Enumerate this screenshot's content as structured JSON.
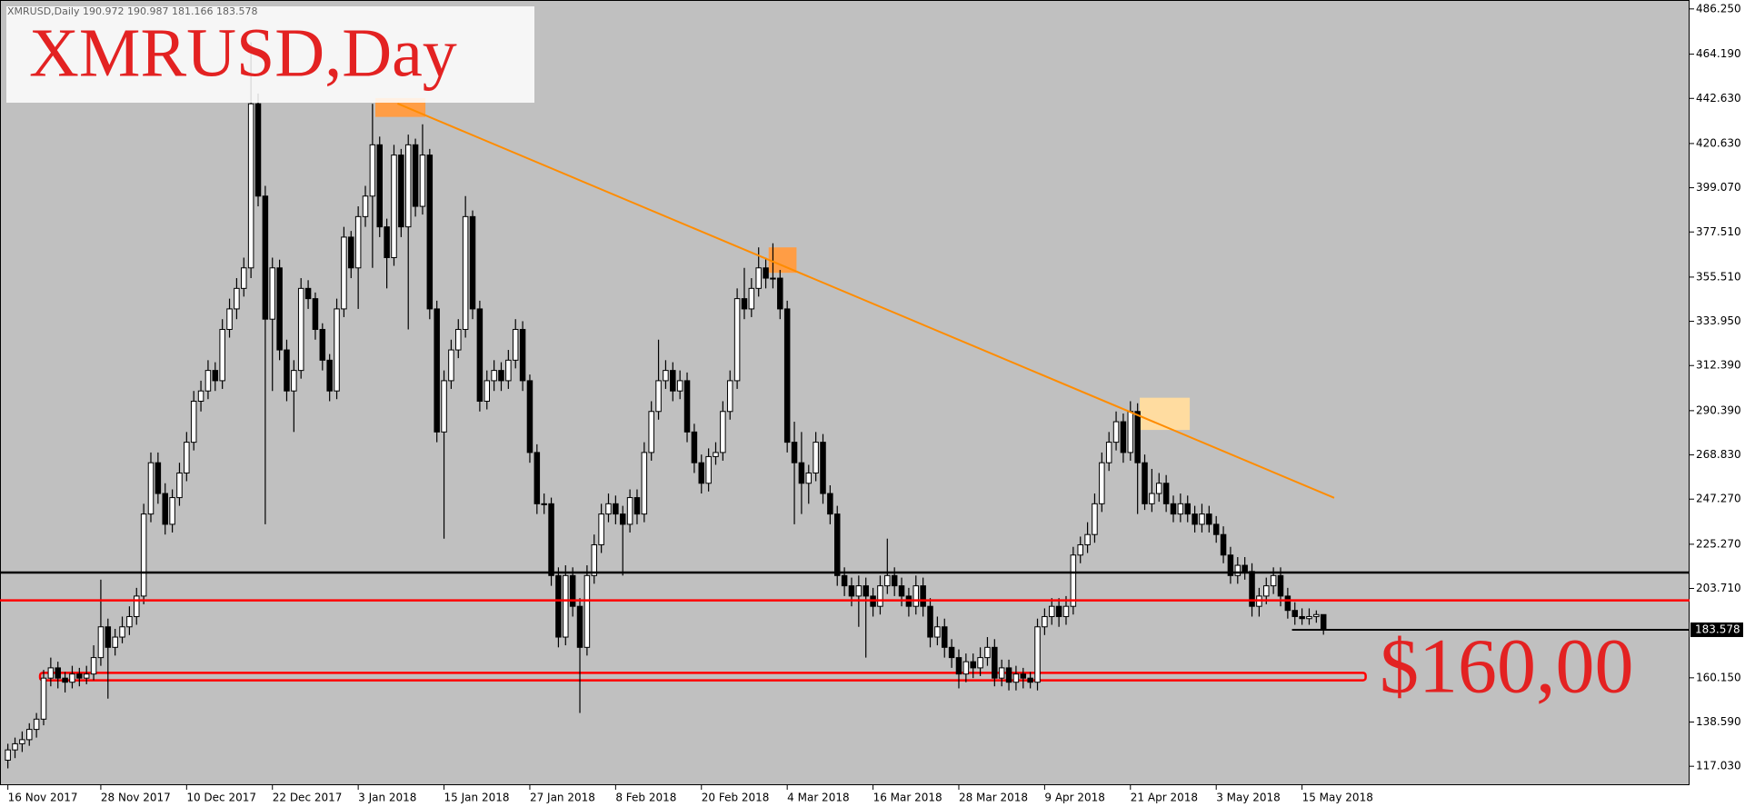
{
  "chart_data": {
    "type": "candlestick",
    "header": "XMRUSD,Daily  190.972 190.987 181.166 183.578",
    "title": "XMRUSD,Day",
    "annotation": "$160,00",
    "bull_color": "#ffffff",
    "bear_color": "#000000",
    "background": "#c0c0c0",
    "xlim": [
      -1.1,
      235.2
    ],
    "ylim": [
      107.8,
      490.6
    ],
    "yticks": [
      {
        "value": 486.25,
        "label": "486.250"
      },
      {
        "value": 464.19,
        "label": "464.190"
      },
      {
        "value": 442.63,
        "label": "442.630"
      },
      {
        "value": 420.63,
        "label": "420.630"
      },
      {
        "value": 399.07,
        "label": "399.070"
      },
      {
        "value": 377.51,
        "label": "377.510"
      },
      {
        "value": 355.51,
        "label": "355.510"
      },
      {
        "value": 333.95,
        "label": "333.950"
      },
      {
        "value": 312.39,
        "label": "312.390"
      },
      {
        "value": 290.39,
        "label": "290.390"
      },
      {
        "value": 268.83,
        "label": "268.830"
      },
      {
        "value": 247.27,
        "label": "247.270"
      },
      {
        "value": 225.27,
        "label": "225.270"
      },
      {
        "value": 203.71,
        "label": "203.710"
      },
      {
        "value": 160.15,
        "label": "160.150"
      },
      {
        "value": 138.59,
        "label": "138.590"
      },
      {
        "value": 117.03,
        "label": "117.030"
      }
    ],
    "xticks": [
      {
        "value": 0,
        "label": "16 Nov 2017"
      },
      {
        "value": 13,
        "label": "28 Nov 2017"
      },
      {
        "value": 25,
        "label": "10 Dec 2017"
      },
      {
        "value": 37,
        "label": "22 Dec 2017"
      },
      {
        "value": 49,
        "label": "3 Jan 2018"
      },
      {
        "value": 61,
        "label": "15 Jan 2018"
      },
      {
        "value": 73,
        "label": "27 Jan 2018"
      },
      {
        "value": 85,
        "label": "8 Feb 2018"
      },
      {
        "value": 97,
        "label": "20 Feb 2018"
      },
      {
        "value": 109,
        "label": "4 Mar 2018"
      },
      {
        "value": 121,
        "label": "16 Mar 2018"
      },
      {
        "value": 133,
        "label": "28 Mar 2018"
      },
      {
        "value": 145,
        "label": "9 Apr 2018"
      },
      {
        "value": 157,
        "label": "21 Apr 2018"
      },
      {
        "value": 169,
        "label": "3 May 2018"
      },
      {
        "value": 181,
        "label": "15 May 2018"
      }
    ],
    "last_price": 183.578,
    "last_price_line_x": 179.6,
    "levels": [
      {
        "value": 211.5,
        "color": "#000000"
      },
      {
        "value": 197.9,
        "color": "#ff0000"
      }
    ],
    "band": {
      "range": [
        158.9,
        162.6
      ],
      "x": [
        4.5,
        189.9
      ],
      "color": "#ff0000"
    },
    "trendline": {
      "x": [
        54.5,
        185.5
      ],
      "y": [
        440.1,
        247.9
      ],
      "color": "#ff8c00"
    },
    "highlights": [
      {
        "x": [
          51.4,
          58.4
        ],
        "y": [
          433.6,
          442.8
        ],
        "color": "#ff9d45"
      },
      {
        "x": [
          106.4,
          110.3
        ],
        "y": [
          357.6,
          370.0
        ],
        "color": "#ff9d45"
      },
      {
        "x": [
          158.3,
          165.3
        ],
        "y": [
          281.0,
          296.7
        ],
        "color": "#ffdca0"
      }
    ],
    "ohlc": [
      [
        120,
        128,
        116,
        125
      ],
      [
        125,
        131,
        121,
        128
      ],
      [
        128,
        134,
        124,
        130
      ],
      [
        130,
        138,
        127,
        135
      ],
      [
        135,
        143,
        131,
        140
      ],
      [
        140,
        164,
        137,
        160
      ],
      [
        160,
        170,
        156,
        165
      ],
      [
        165,
        168,
        155,
        160
      ],
      [
        160,
        163,
        153,
        158
      ],
      [
        158,
        166,
        155,
        162
      ],
      [
        162,
        165,
        156,
        160
      ],
      [
        160,
        166,
        157,
        162
      ],
      [
        162,
        176,
        159,
        170
      ],
      [
        170,
        208,
        166,
        185
      ],
      [
        185,
        189,
        150,
        175
      ],
      [
        175,
        184,
        171,
        180
      ],
      [
        180,
        190,
        177,
        185
      ],
      [
        185,
        195,
        181,
        190
      ],
      [
        190,
        204,
        186,
        200
      ],
      [
        200,
        245,
        196,
        240
      ],
      [
        240,
        270,
        236,
        265
      ],
      [
        265,
        270,
        245,
        250
      ],
      [
        250,
        255,
        230,
        235
      ],
      [
        235,
        252,
        231,
        248
      ],
      [
        248,
        265,
        244,
        260
      ],
      [
        260,
        280,
        256,
        275
      ],
      [
        275,
        300,
        271,
        295
      ],
      [
        295,
        305,
        290,
        300
      ],
      [
        300,
        315,
        296,
        310
      ],
      [
        310,
        314,
        300,
        305
      ],
      [
        305,
        335,
        301,
        330
      ],
      [
        330,
        345,
        326,
        340
      ],
      [
        340,
        355,
        335,
        350
      ],
      [
        350,
        365,
        346,
        360
      ],
      [
        360,
        470,
        355,
        440
      ],
      [
        440,
        445,
        390,
        395
      ],
      [
        395,
        400,
        235,
        335
      ],
      [
        335,
        365,
        300,
        360
      ],
      [
        360,
        364,
        315,
        320
      ],
      [
        320,
        325,
        295,
        300
      ],
      [
        300,
        315,
        280,
        310
      ],
      [
        310,
        355,
        306,
        350
      ],
      [
        350,
        354,
        340,
        345
      ],
      [
        345,
        348,
        325,
        330
      ],
      [
        330,
        333,
        310,
        315
      ],
      [
        315,
        318,
        295,
        300
      ],
      [
        300,
        345,
        296,
        340
      ],
      [
        340,
        380,
        336,
        375
      ],
      [
        375,
        378,
        355,
        360
      ],
      [
        360,
        390,
        340,
        385
      ],
      [
        385,
        400,
        380,
        395
      ],
      [
        395,
        440,
        360,
        420
      ],
      [
        420,
        424,
        375,
        380
      ],
      [
        380,
        384,
        350,
        365
      ],
      [
        365,
        420,
        361,
        415
      ],
      [
        415,
        418,
        375,
        380
      ],
      [
        380,
        425,
        330,
        420
      ],
      [
        420,
        423,
        385,
        390
      ],
      [
        390,
        430,
        386,
        415
      ],
      [
        415,
        418,
        335,
        340
      ],
      [
        340,
        344,
        275,
        280
      ],
      [
        280,
        310,
        228,
        305
      ],
      [
        305,
        325,
        301,
        320
      ],
      [
        320,
        335,
        316,
        330
      ],
      [
        330,
        395,
        326,
        385
      ],
      [
        385,
        388,
        335,
        340
      ],
      [
        340,
        344,
        290,
        295
      ],
      [
        295,
        310,
        291,
        305
      ],
      [
        305,
        315,
        300,
        310
      ],
      [
        310,
        314,
        300,
        305
      ],
      [
        305,
        320,
        301,
        315
      ],
      [
        315,
        335,
        311,
        330
      ],
      [
        330,
        334,
        300,
        305
      ],
      [
        305,
        308,
        265,
        270
      ],
      [
        270,
        274,
        240,
        245
      ],
      [
        245,
        250,
        240,
        245
      ],
      [
        245,
        248,
        205,
        210
      ],
      [
        210,
        214,
        175,
        180
      ],
      [
        180,
        215,
        176,
        210
      ],
      [
        210,
        214,
        190,
        195
      ],
      [
        195,
        199,
        143,
        175
      ],
      [
        175,
        215,
        171,
        210
      ],
      [
        210,
        230,
        206,
        225
      ],
      [
        225,
        245,
        221,
        240
      ],
      [
        240,
        250,
        236,
        245
      ],
      [
        245,
        249,
        235,
        240
      ],
      [
        240,
        244,
        210,
        235
      ],
      [
        235,
        252,
        231,
        248
      ],
      [
        248,
        252,
        235,
        240
      ],
      [
        240,
        275,
        236,
        270
      ],
      [
        270,
        295,
        266,
        290
      ],
      [
        290,
        325,
        286,
        305
      ],
      [
        305,
        315,
        301,
        310
      ],
      [
        310,
        314,
        295,
        300
      ],
      [
        300,
        310,
        296,
        305
      ],
      [
        305,
        309,
        275,
        280
      ],
      [
        280,
        284,
        260,
        265
      ],
      [
        265,
        269,
        250,
        255
      ],
      [
        255,
        272,
        251,
        268
      ],
      [
        268,
        275,
        264,
        270
      ],
      [
        270,
        295,
        266,
        290
      ],
      [
        290,
        310,
        286,
        305
      ],
      [
        305,
        350,
        301,
        345
      ],
      [
        345,
        360,
        335,
        340
      ],
      [
        340,
        355,
        336,
        350
      ],
      [
        350,
        370,
        346,
        360
      ],
      [
        360,
        365,
        350,
        355
      ],
      [
        355,
        372,
        350,
        355
      ],
      [
        355,
        359,
        335,
        340
      ],
      [
        340,
        344,
        270,
        275
      ],
      [
        275,
        285,
        235,
        265
      ],
      [
        265,
        280,
        240,
        255
      ],
      [
        255,
        264,
        245,
        260
      ],
      [
        260,
        280,
        256,
        275
      ],
      [
        275,
        279,
        245,
        250
      ],
      [
        250,
        254,
        235,
        240
      ],
      [
        240,
        244,
        205,
        210
      ],
      [
        210,
        214,
        200,
        205
      ],
      [
        205,
        209,
        195,
        200
      ],
      [
        200,
        210,
        185,
        205
      ],
      [
        205,
        209,
        170,
        200
      ],
      [
        200,
        204,
        190,
        195
      ],
      [
        195,
        210,
        191,
        205
      ],
      [
        205,
        228,
        201,
        210
      ],
      [
        210,
        214,
        200,
        205
      ],
      [
        205,
        209,
        195,
        200
      ],
      [
        200,
        204,
        190,
        195
      ],
      [
        195,
        210,
        191,
        205
      ],
      [
        205,
        209,
        190,
        195
      ],
      [
        195,
        199,
        175,
        180
      ],
      [
        180,
        190,
        176,
        185
      ],
      [
        185,
        189,
        170,
        175
      ],
      [
        175,
        179,
        165,
        170
      ],
      [
        170,
        174,
        155,
        162
      ],
      [
        162,
        172,
        158,
        168
      ],
      [
        168,
        172,
        160,
        165
      ],
      [
        165,
        175,
        161,
        170
      ],
      [
        170,
        180,
        166,
        175
      ],
      [
        175,
        179,
        156,
        160
      ],
      [
        160,
        169,
        156,
        165
      ],
      [
        165,
        169,
        154,
        158
      ],
      [
        158,
        166,
        154,
        162
      ],
      [
        162,
        165,
        155,
        160
      ],
      [
        160,
        163,
        155,
        158
      ],
      [
        158,
        189,
        154,
        185
      ],
      [
        185,
        194,
        181,
        190
      ],
      [
        190,
        199,
        186,
        195
      ],
      [
        195,
        199,
        185,
        190
      ],
      [
        190,
        200,
        186,
        195
      ],
      [
        195,
        224,
        191,
        220
      ],
      [
        220,
        229,
        216,
        225
      ],
      [
        225,
        236,
        221,
        230
      ],
      [
        230,
        250,
        226,
        245
      ],
      [
        245,
        270,
        241,
        265
      ],
      [
        265,
        280,
        261,
        275
      ],
      [
        275,
        290,
        271,
        285
      ],
      [
        285,
        289,
        265,
        270
      ],
      [
        270,
        295,
        266,
        290
      ],
      [
        290,
        294,
        240,
        265
      ],
      [
        265,
        269,
        242,
        245
      ],
      [
        245,
        262,
        241,
        250
      ],
      [
        250,
        260,
        246,
        255
      ],
      [
        255,
        259,
        241,
        245
      ],
      [
        245,
        249,
        236,
        240
      ],
      [
        240,
        250,
        236,
        245
      ],
      [
        245,
        249,
        236,
        240
      ],
      [
        240,
        244,
        231,
        235
      ],
      [
        235,
        245,
        231,
        240
      ],
      [
        240,
        244,
        231,
        235
      ],
      [
        235,
        239,
        226,
        230
      ],
      [
        230,
        234,
        216,
        220
      ],
      [
        220,
        224,
        206,
        210
      ],
      [
        210,
        219,
        206,
        215
      ],
      [
        215,
        219,
        208,
        212
      ],
      [
        212,
        216,
        190,
        195
      ],
      [
        195,
        204,
        190,
        200
      ],
      [
        200,
        209,
        196,
        205
      ],
      [
        205,
        214,
        201,
        210
      ],
      [
        210,
        214,
        195,
        200
      ],
      [
        200,
        204,
        189,
        193
      ],
      [
        193,
        197,
        186,
        190
      ],
      [
        190,
        194,
        186,
        189
      ],
      [
        189,
        194,
        186,
        190
      ],
      [
        190,
        193,
        187,
        190.972
      ],
      [
        190.972,
        190.987,
        181.166,
        183.578
      ]
    ]
  }
}
